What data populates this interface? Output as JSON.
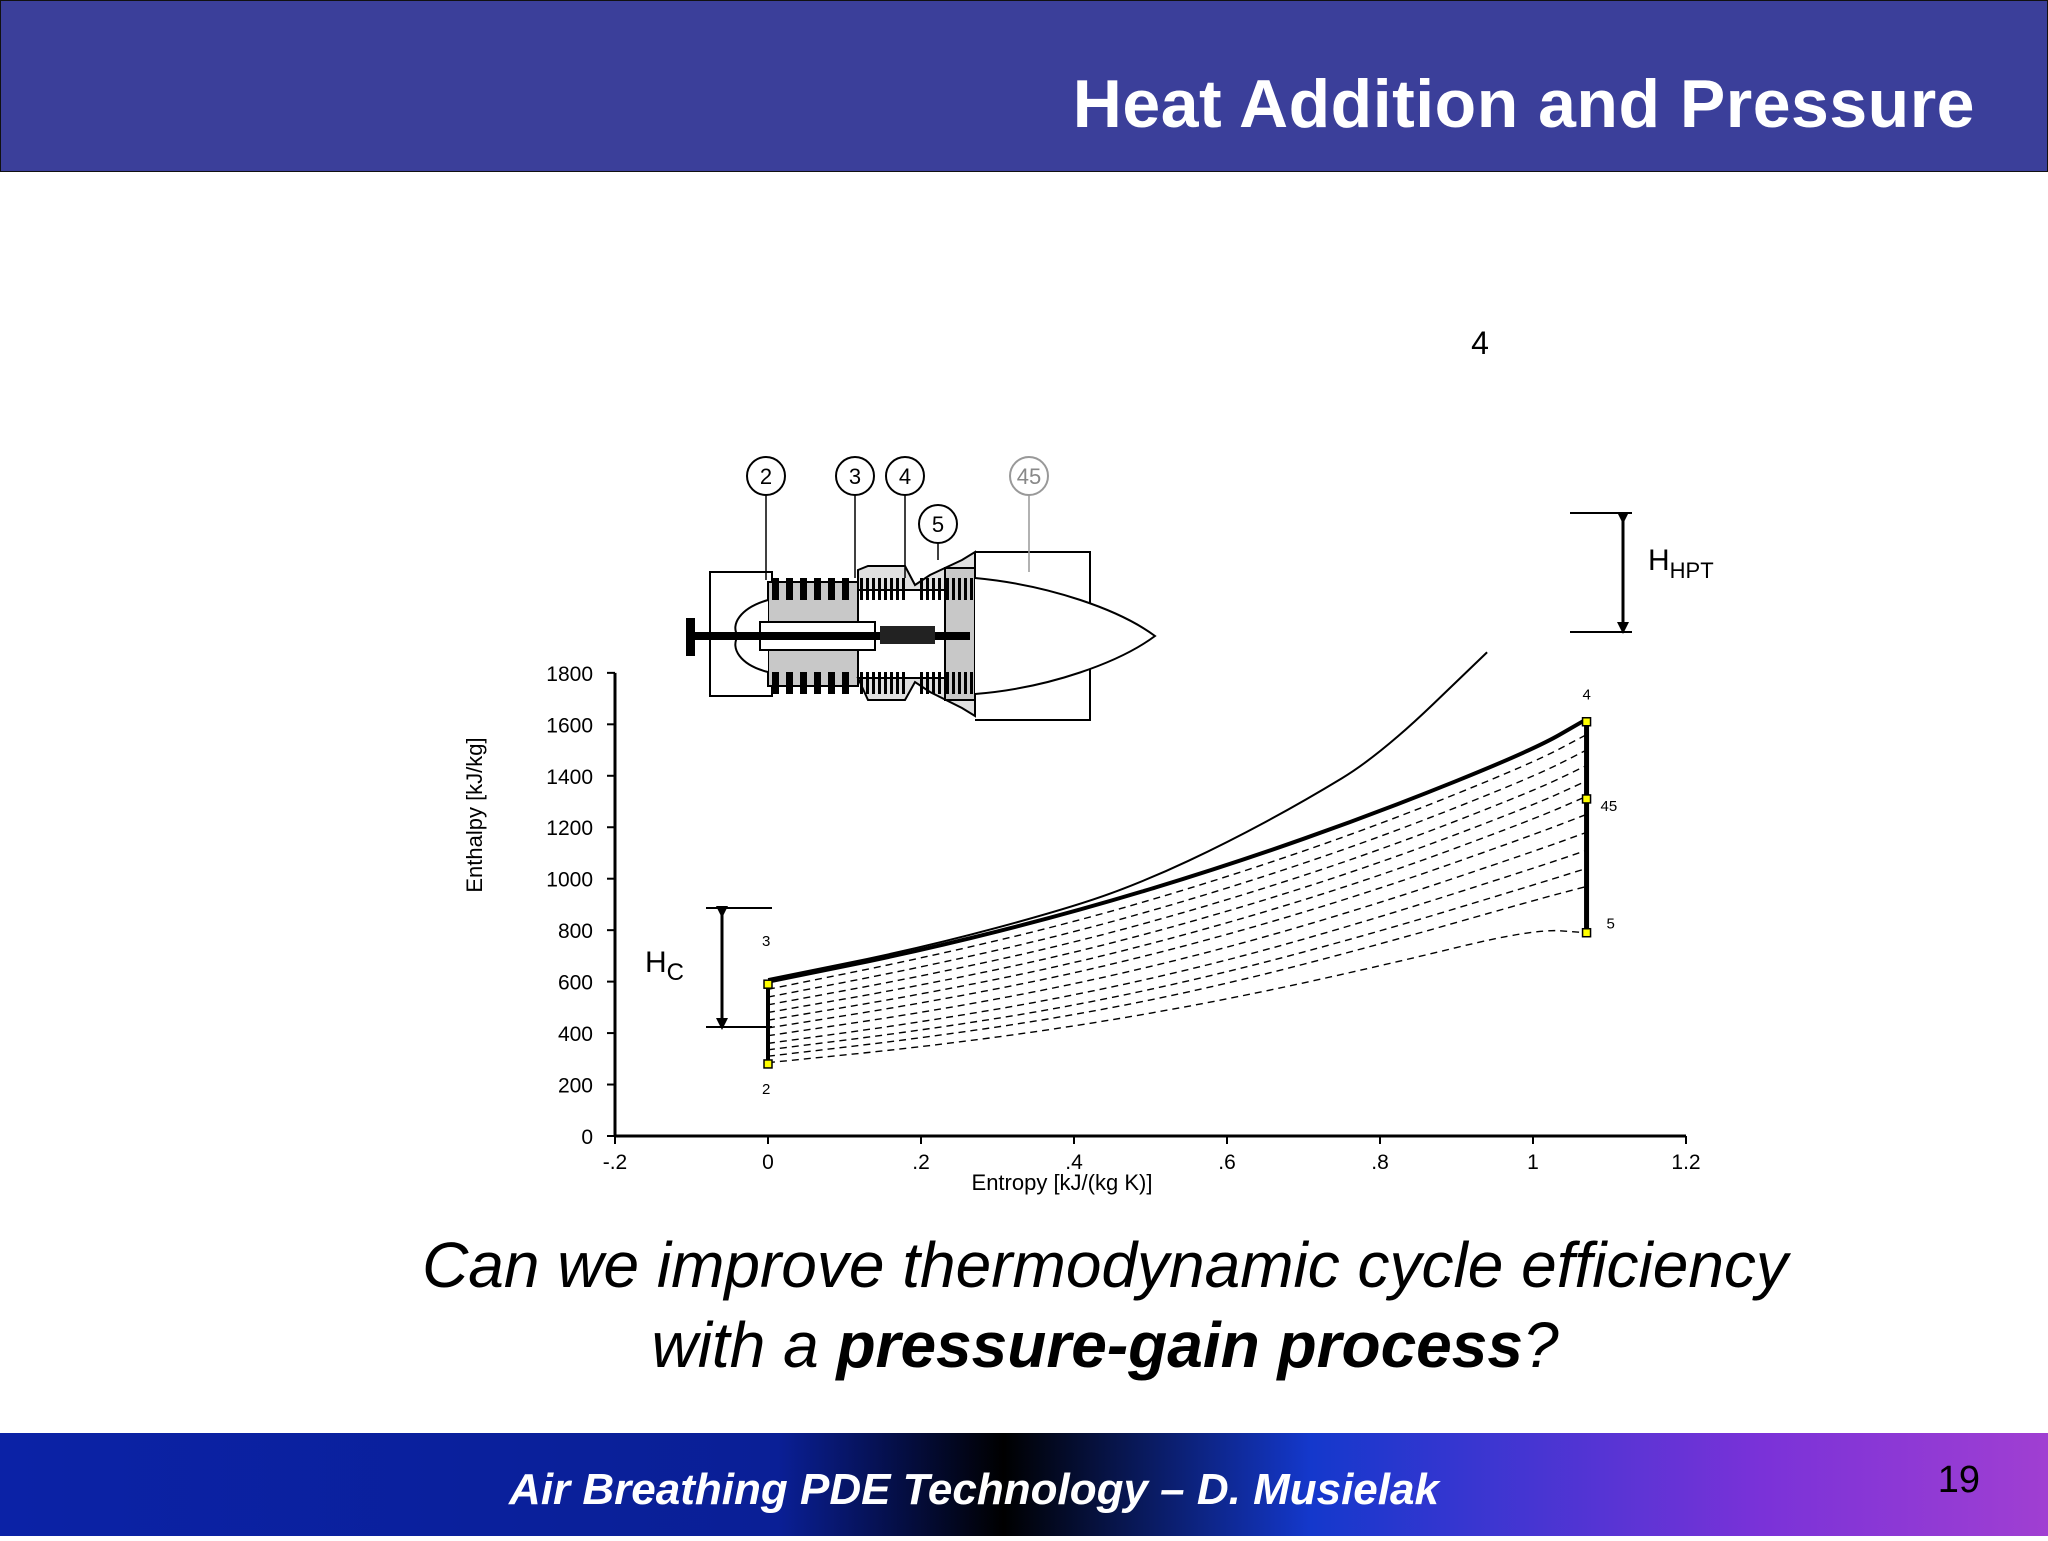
{
  "slide": {
    "title": "Heat Addition and Pressure",
    "question_part1": "Can we improve thermodynamic cycle efficiency  with a ",
    "question_bold": "pressure-gain process",
    "question_end": "?",
    "footer": "Air Breathing PDE Technology – D. Musielak",
    "page_number": "19",
    "colors": {
      "header": "#3b3f9a",
      "title_text": "#ffffff",
      "footer_mid": "#000000",
      "point_marker": "#ffff00"
    }
  },
  "chart_data": {
    "type": "line",
    "title": "",
    "xlabel": "Entropy [kJ/(kg K)]",
    "ylabel": "Enthalpy [kJ/kg]",
    "xlim": [
      -0.2,
      1.2
    ],
    "ylim": [
      0,
      1800
    ],
    "x_ticks": [
      -0.2,
      0,
      0.2,
      0.4,
      0.6,
      0.8,
      1,
      1.2
    ],
    "x_tick_labels": [
      "-.2",
      "0",
      ".2",
      ".4",
      ".6",
      ".8",
      "1",
      "1.2"
    ],
    "y_ticks": [
      0,
      200,
      400,
      600,
      800,
      1000,
      1200,
      1400,
      1600,
      1800
    ],
    "y_tick_labels": [
      "0",
      "200",
      "400",
      "600",
      "800",
      "1000",
      "1200",
      "1400",
      "1600",
      "1800"
    ],
    "series": [
      {
        "style": "solid",
        "x": [
          0,
          0.2,
          0.4,
          0.6,
          0.8,
          1.0,
          1.07
        ],
        "y": [
          600,
          720,
          870,
          1050,
          1260,
          1500,
          1620
        ]
      },
      {
        "style": "solid",
        "x": [
          0,
          0.2,
          0.4,
          0.5,
          0.6,
          0.7,
          0.8,
          0.94
        ],
        "y": [
          610,
          730,
          890,
          1000,
          1140,
          1300,
          1480,
          1880
        ]
      },
      {
        "style": "dashed",
        "x": [
          0,
          0.2,
          0.4,
          0.6,
          0.8,
          1.0,
          1.07
        ],
        "y": [
          570,
          690,
          830,
          1005,
          1210,
          1450,
          1560
        ]
      },
      {
        "style": "dashed",
        "x": [
          0,
          0.2,
          0.4,
          0.6,
          0.8,
          1.0,
          1.07
        ],
        "y": [
          540,
          655,
          790,
          960,
          1160,
          1395,
          1500
        ]
      },
      {
        "style": "dashed",
        "x": [
          0,
          0.2,
          0.4,
          0.6,
          0.8,
          1.0,
          1.07
        ],
        "y": [
          510,
          620,
          750,
          915,
          1110,
          1340,
          1440
        ]
      },
      {
        "style": "dashed",
        "x": [
          0,
          0.2,
          0.4,
          0.6,
          0.8,
          1.0,
          1.07
        ],
        "y": [
          480,
          585,
          710,
          870,
          1060,
          1285,
          1380
        ]
      },
      {
        "style": "dashed",
        "x": [
          0,
          0.2,
          0.4,
          0.6,
          0.8,
          1.0,
          1.07
        ],
        "y": [
          450,
          550,
          670,
          825,
          1010,
          1230,
          1320
        ]
      },
      {
        "style": "dashed",
        "x": [
          0,
          0.2,
          0.4,
          0.6,
          0.8,
          1.0,
          1.07
        ],
        "y": [
          420,
          515,
          630,
          780,
          960,
          1170,
          1250
        ]
      },
      {
        "style": "dashed",
        "x": [
          0,
          0.2,
          0.4,
          0.6,
          0.8,
          1.0,
          1.07
        ],
        "y": [
          390,
          478,
          588,
          730,
          905,
          1105,
          1180
        ]
      },
      {
        "style": "dashed",
        "x": [
          0,
          0.2,
          0.4,
          0.6,
          0.8,
          1.0,
          1.07
        ],
        "y": [
          360,
          442,
          545,
          680,
          850,
          1040,
          1110
        ]
      },
      {
        "style": "dashed",
        "x": [
          0,
          0.2,
          0.4,
          0.6,
          0.8,
          1.0,
          1.07
        ],
        "y": [
          335,
          410,
          505,
          635,
          795,
          975,
          1040
        ]
      },
      {
        "style": "dashed",
        "x": [
          0,
          0.2,
          0.4,
          0.6,
          0.8,
          1.0,
          1.07
        ],
        "y": [
          310,
          380,
          468,
          590,
          745,
          915,
          970
        ]
      },
      {
        "style": "dashed",
        "x": [
          0,
          0.2,
          0.4,
          0.6,
          0.8,
          1.0,
          1.07
        ],
        "y": [
          285,
          345,
          425,
          530,
          660,
          805,
          790
        ]
      }
    ],
    "state_points": [
      {
        "label": "2",
        "x": 0,
        "y": 280
      },
      {
        "label": "3",
        "x": 0,
        "y": 590
      },
      {
        "label": "4",
        "x": 1.07,
        "y": 1610
      },
      {
        "label": "45",
        "x": 1.07,
        "y": 1310
      },
      {
        "label": "5",
        "x": 1.07,
        "y": 790
      }
    ],
    "annotations": {
      "top_label": "4",
      "h_c_main": "H",
      "h_c_sub": "C",
      "h_hpt_main": "H",
      "h_hpt_sub": "HPT",
      "engine_stations": [
        "2",
        "3",
        "4",
        "45",
        "5"
      ]
    }
  }
}
